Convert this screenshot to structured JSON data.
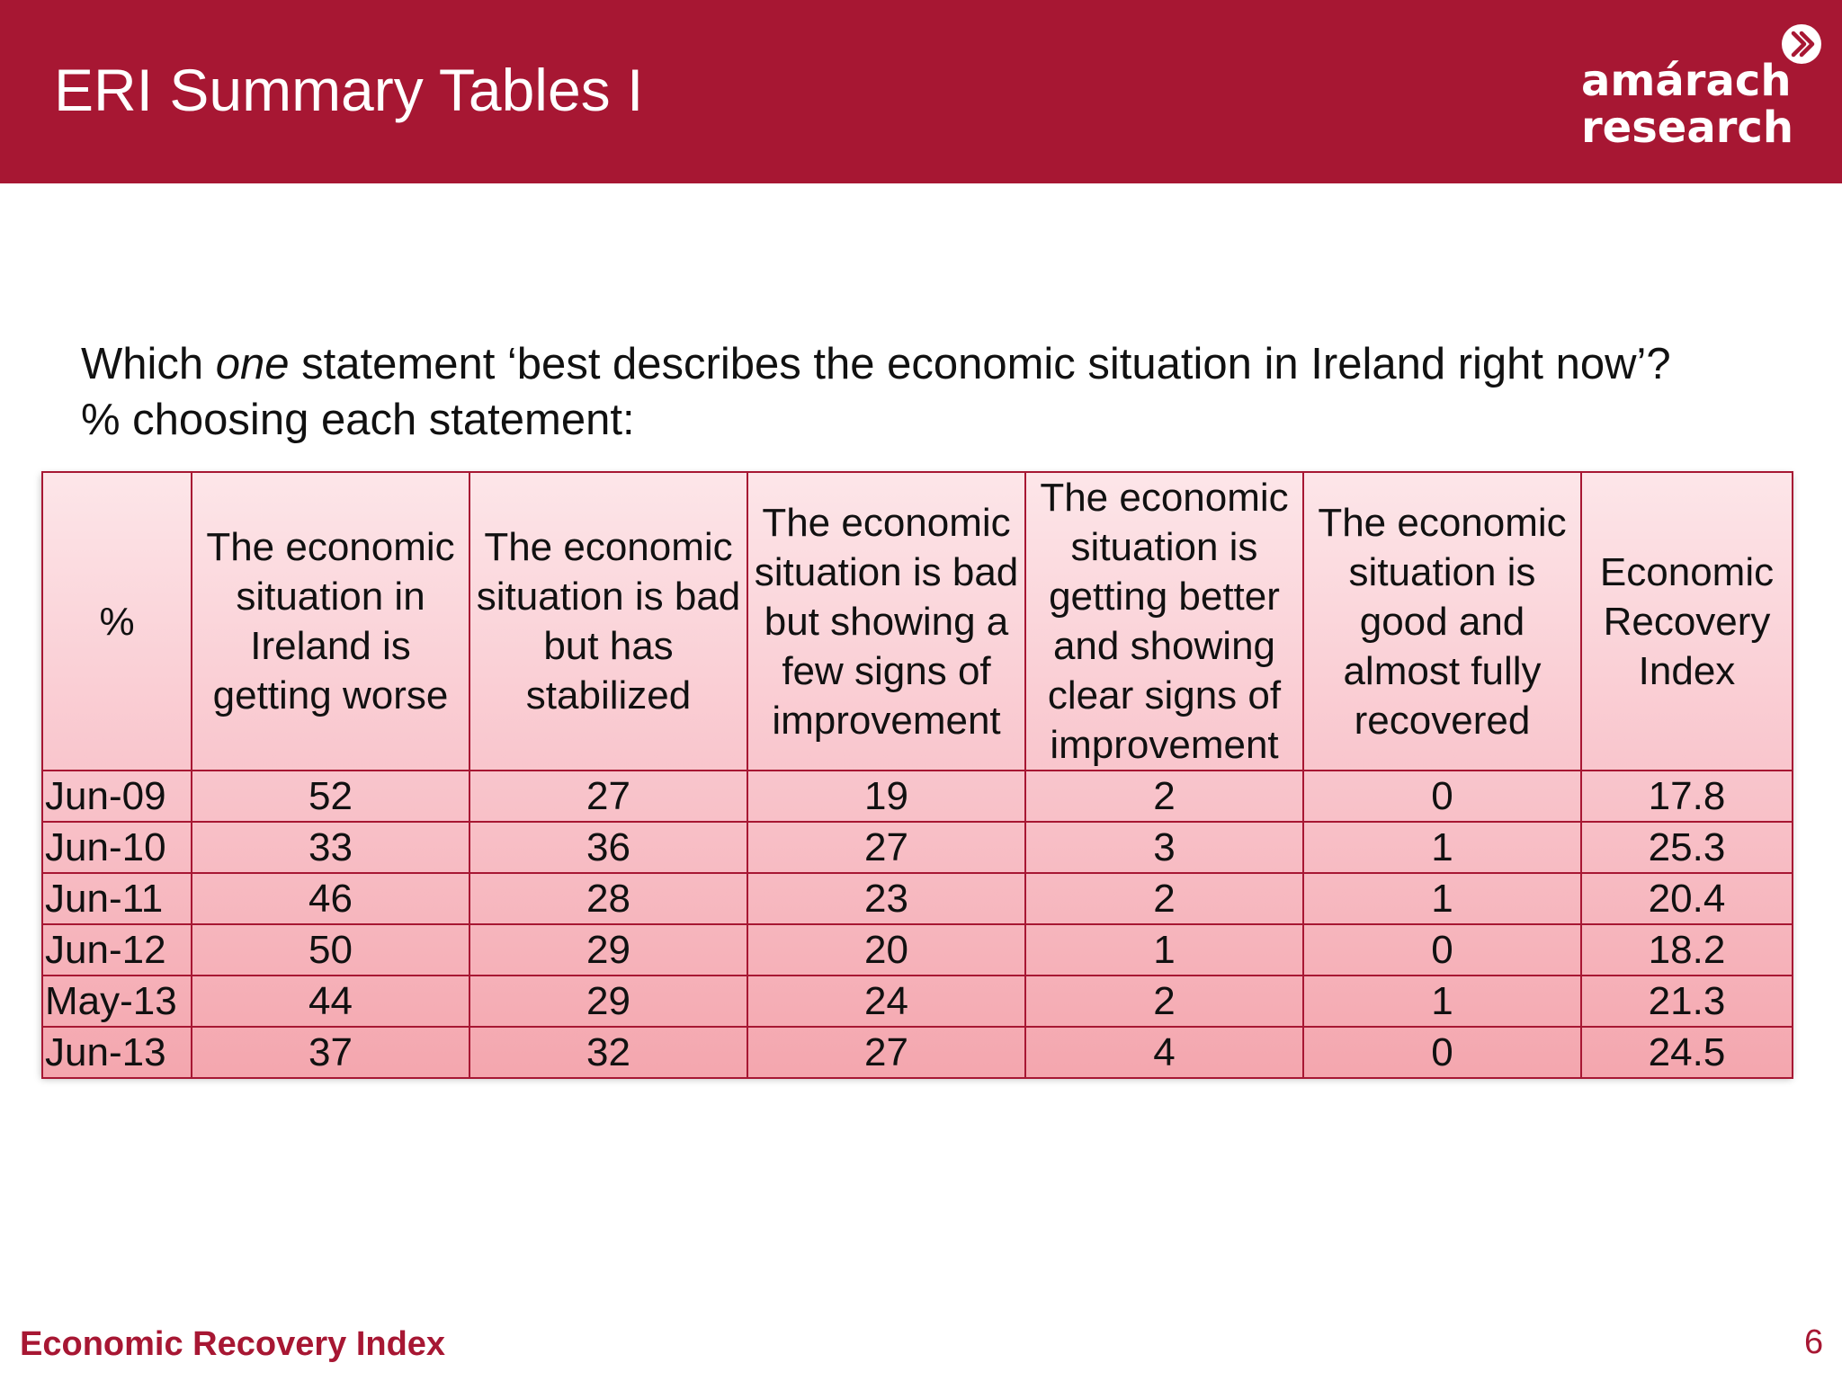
{
  "header": {
    "title": "ERI Summary Tables I",
    "logo_line1": "amárach",
    "logo_line2": "research"
  },
  "question": {
    "prefix": "Which ",
    "emphasis": "one",
    "suffix": " statement ‘best describes the economic situation in Ireland right now’?",
    "line2": "% choosing each statement:"
  },
  "table": {
    "headers": [
      "%",
      "The economic situation in Ireland is getting worse",
      "The economic situation is bad but has stabilized",
      "The economic situation is bad but showing a few signs of improvement",
      "The economic situation is getting better and showing clear signs of improvement",
      "The economic situation is good and almost fully recovered",
      "Economic Recovery Index"
    ],
    "rows": [
      [
        "Jun-09",
        "52",
        "27",
        "19",
        "2",
        "0",
        "17.8"
      ],
      [
        "Jun-10",
        "33",
        "36",
        "27",
        "3",
        "1",
        "25.3"
      ],
      [
        "Jun-11",
        "46",
        "28",
        "23",
        "2",
        "1",
        "20.4"
      ],
      [
        "Jun-12",
        "50",
        "29",
        "20",
        "1",
        "0",
        "18.2"
      ],
      [
        "May-13",
        "44",
        "29",
        "24",
        "2",
        "1",
        "21.3"
      ],
      [
        "Jun-13",
        "37",
        "32",
        "27",
        "4",
        "0",
        "24.5"
      ]
    ]
  },
  "footer": {
    "left": "Economic Recovery Index",
    "page_number": "6"
  },
  "colors": {
    "brand": "#a71733",
    "table_top": "#fde6e9",
    "table_bottom": "#f4a6ae"
  }
}
